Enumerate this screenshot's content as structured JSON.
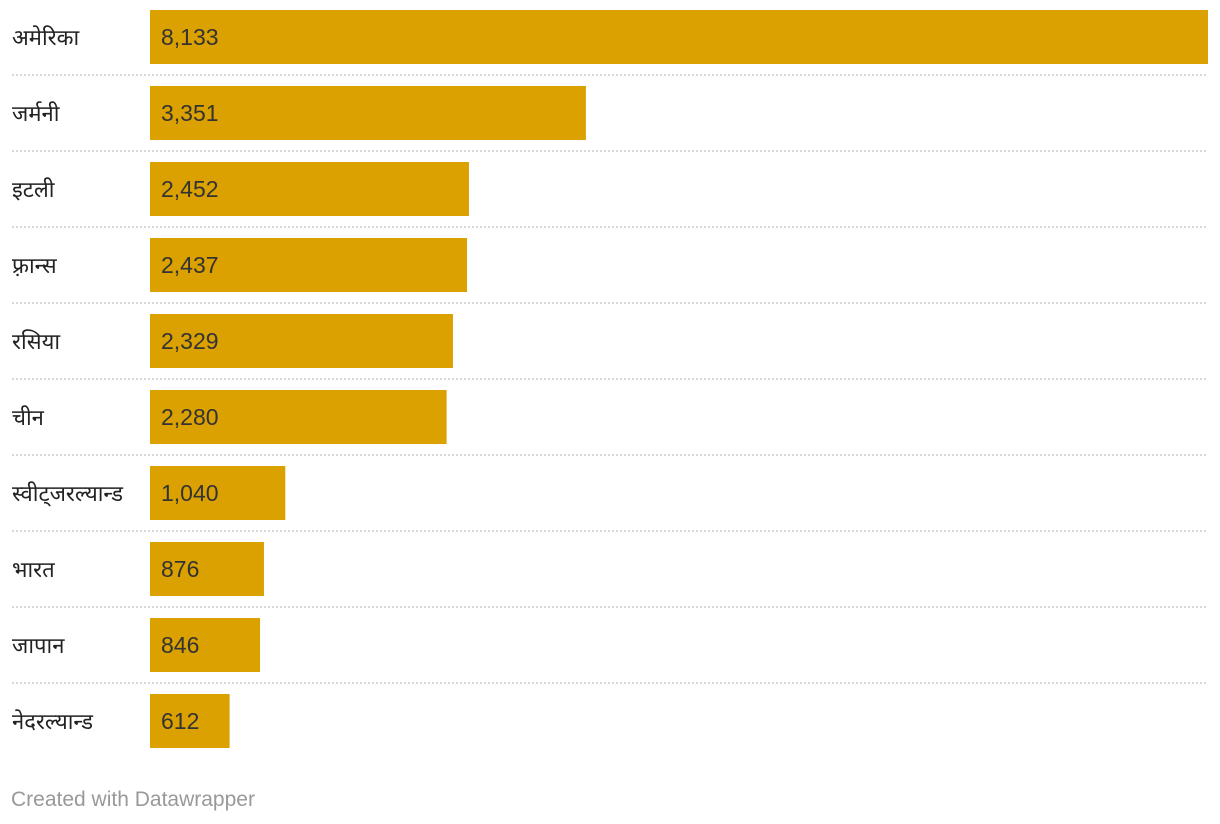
{
  "chart_data": {
    "type": "bar",
    "orientation": "horizontal",
    "categories": [
      "अमेरिका",
      "जर्मनी",
      "इटली",
      "फ़्रान्स",
      "रसिया",
      "चीन",
      "स्वीट्जरल्यान्ड",
      "भारत",
      "जापान",
      "नेदरल्यान्ड"
    ],
    "values": [
      8133,
      3351,
      2452,
      2437,
      2329,
      2280,
      1040,
      876,
      846,
      612
    ],
    "value_labels": [
      "8,133",
      "3,351",
      "2,452",
      "2,437",
      "2,329",
      "2,280",
      "1,040",
      "876",
      "846",
      "612"
    ],
    "title": "",
    "xlabel": "",
    "ylabel": "",
    "xlim": [
      0,
      8133
    ],
    "grid": false,
    "bar_color": "#dba100"
  },
  "footer": {
    "credit": "Created with Datawrapper"
  }
}
